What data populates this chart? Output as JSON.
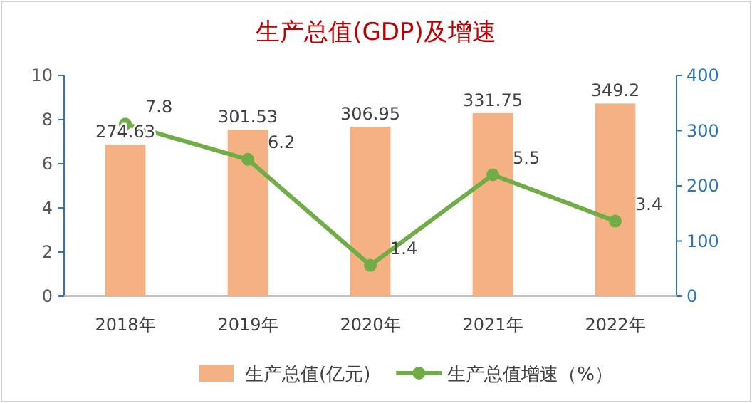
{
  "chart_data": {
    "type": "bar",
    "title": "生产总值(GDP)及增速",
    "categories": [
      "2018年",
      "2019年",
      "2020年",
      "2021年",
      "2022年"
    ],
    "series": [
      {
        "name": "生产总值(亿元)",
        "axis": "y2",
        "color": "#f4b183",
        "values": [
          274.63,
          301.53,
          306.95,
          331.75,
          349.2
        ]
      },
      {
        "name": "生产总值增速（%）",
        "type": "line",
        "color": "#70ad47",
        "marker": "circle",
        "values": [
          7.8,
          6.2,
          1.4,
          5.5,
          3.4
        ]
      }
    ],
    "ylim": [
      0,
      10
    ],
    "yticks": [
      0,
      2,
      4,
      6,
      8,
      10
    ],
    "y2lim": [
      0,
      400
    ],
    "y2ticks": [
      0,
      100,
      200,
      300,
      400
    ],
    "data_labels": true,
    "legend": "bottom",
    "grid": false
  }
}
